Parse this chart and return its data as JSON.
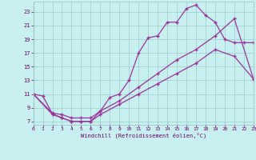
{
  "xlabel": "Windchill (Refroidissement éolien,°C)",
  "xlim": [
    0,
    23
  ],
  "ylim": [
    6.5,
    24.5
  ],
  "xticks": [
    0,
    1,
    2,
    3,
    4,
    5,
    6,
    7,
    8,
    9,
    10,
    11,
    12,
    13,
    14,
    15,
    16,
    17,
    18,
    19,
    20,
    21,
    22,
    23
  ],
  "yticks": [
    7,
    9,
    11,
    13,
    15,
    17,
    19,
    21,
    23
  ],
  "bg_color": "#c8f0f0",
  "line_color": "#993399",
  "grid_color": "#99cccc",
  "curve1_x": [
    0,
    1,
    2,
    3,
    4,
    5,
    6,
    7,
    8,
    9,
    10,
    11,
    12,
    13,
    14,
    15,
    16,
    17,
    18,
    19,
    20,
    21,
    22,
    23
  ],
  "curve1_y": [
    11,
    10.7,
    8.1,
    7.5,
    7.0,
    7.0,
    7.0,
    8.5,
    10.5,
    11.0,
    13.0,
    17.0,
    19.2,
    19.5,
    21.5,
    21.5,
    23.5,
    24.0,
    22.5,
    21.5,
    19.0,
    18.5,
    18.5,
    18.5
  ],
  "curve2_x": [
    0,
    2,
    3,
    4,
    5,
    6,
    7,
    9,
    11,
    13,
    15,
    17,
    19,
    21,
    23
  ],
  "curve2_y": [
    11,
    8.2,
    8.0,
    7.5,
    7.5,
    7.5,
    8.5,
    10.0,
    12.0,
    14.0,
    16.0,
    17.5,
    19.5,
    22.0,
    13.2
  ],
  "curve3_x": [
    0,
    2,
    3,
    4,
    5,
    6,
    7,
    9,
    11,
    13,
    15,
    17,
    19,
    21,
    23
  ],
  "curve3_y": [
    11,
    8.0,
    7.5,
    7.0,
    7.0,
    7.0,
    8.0,
    9.5,
    11.0,
    12.5,
    14.0,
    15.5,
    17.5,
    16.5,
    13.2
  ]
}
